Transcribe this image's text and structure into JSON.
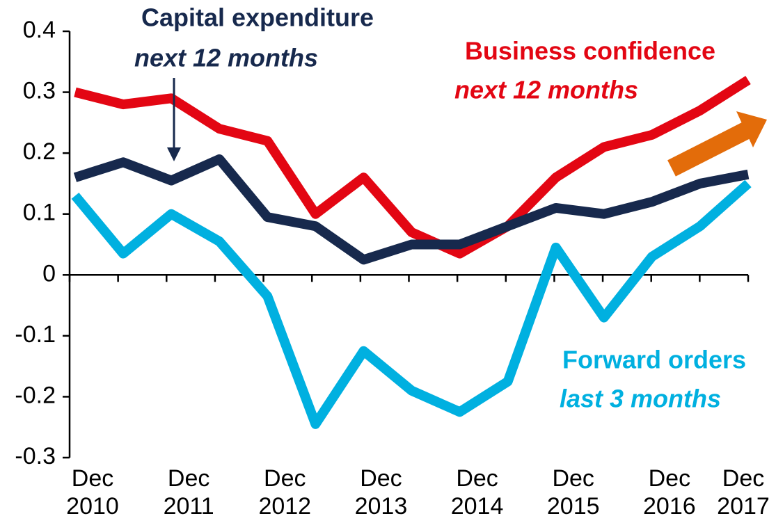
{
  "chart_data": {
    "type": "line",
    "categories": [
      "Dec 2010",
      null,
      "Dec 2011",
      null,
      "Dec 2012",
      null,
      "Dec 2013",
      null,
      "Dec 2014",
      null,
      "Dec 2015",
      null,
      "Dec 2016",
      null,
      "Dec 2017"
    ],
    "series": [
      {
        "name": "Business confidence",
        "period": "next 12 months",
        "color": "#e30613",
        "values": [
          0.3,
          0.28,
          0.29,
          0.24,
          0.22,
          0.1,
          0.16,
          0.07,
          0.035,
          0.08,
          0.16,
          0.21,
          0.23,
          0.27,
          0.32
        ]
      },
      {
        "name": "Capital expenditure",
        "period": "next 12 months",
        "color": "#17294d",
        "values": [
          0.16,
          0.185,
          0.155,
          0.19,
          0.095,
          0.08,
          0.025,
          0.05,
          0.05,
          0.08,
          0.11,
          0.1,
          0.12,
          0.15,
          0.165
        ]
      },
      {
        "name": "Forward orders",
        "period": "last 3 months",
        "color": "#00b0e0",
        "values": [
          0.13,
          0.035,
          0.1,
          0.055,
          -0.035,
          -0.245,
          -0.125,
          -0.19,
          -0.225,
          -0.175,
          0.045,
          -0.07,
          0.03,
          0.08,
          0.15
        ]
      }
    ],
    "ylim": [
      -0.3,
      0.4
    ],
    "yticks": [
      {
        "value": -0.3,
        "label": "-0.3"
      },
      {
        "value": -0.2,
        "label": "-0.2"
      },
      {
        "value": -0.1,
        "label": "-0.1"
      },
      0,
      {
        "value": 0.1,
        "label": "0.1"
      },
      {
        "value": 0.2,
        "label": "0.2"
      },
      {
        "value": 0.3,
        "label": "0.3"
      },
      {
        "value": 0.4,
        "label": "0.4"
      }
    ]
  }
}
